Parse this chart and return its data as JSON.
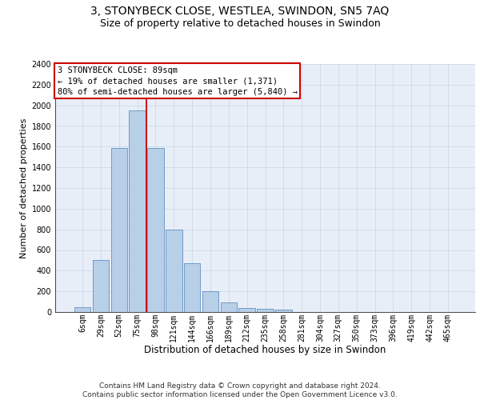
{
  "title": "3, STONYBECK CLOSE, WESTLEA, SWINDON, SN5 7AQ",
  "subtitle": "Size of property relative to detached houses in Swindon",
  "xlabel": "Distribution of detached houses by size in Swindon",
  "ylabel": "Number of detached properties",
  "categories": [
    "6sqm",
    "29sqm",
    "52sqm",
    "75sqm",
    "98sqm",
    "121sqm",
    "144sqm",
    "166sqm",
    "189sqm",
    "212sqm",
    "235sqm",
    "258sqm",
    "281sqm",
    "304sqm",
    "327sqm",
    "350sqm",
    "373sqm",
    "396sqm",
    "419sqm",
    "442sqm",
    "465sqm"
  ],
  "values": [
    50,
    500,
    1590,
    1950,
    1590,
    800,
    470,
    200,
    90,
    40,
    30,
    20,
    0,
    0,
    0,
    0,
    0,
    0,
    0,
    0,
    0
  ],
  "bar_color": "#b8cfe8",
  "bar_edge_color": "#6090c0",
  "property_line_color": "#cc0000",
  "property_line_x": 3.5,
  "annotation_text_line1": "3 STONYBECK CLOSE: 89sqm",
  "annotation_text_line2": "← 19% of detached houses are smaller (1,371)",
  "annotation_text_line3": "80% of semi-detached houses are larger (5,840) →",
  "annotation_box_facecolor": "#ffffff",
  "annotation_box_edgecolor": "#cc0000",
  "ylim": [
    0,
    2400
  ],
  "yticks": [
    0,
    200,
    400,
    600,
    800,
    1000,
    1200,
    1400,
    1600,
    1800,
    2000,
    2200,
    2400
  ],
  "grid_color": "#c8d4e4",
  "axes_bg_color": "#e8eef8",
  "footer_line1": "Contains HM Land Registry data © Crown copyright and database right 2024.",
  "footer_line2": "Contains public sector information licensed under the Open Government Licence v3.0.",
  "title_fontsize": 10,
  "subtitle_fontsize": 9,
  "xlabel_fontsize": 8.5,
  "ylabel_fontsize": 8,
  "tick_fontsize": 7,
  "annotation_fontsize": 7.5,
  "footer_fontsize": 6.5
}
